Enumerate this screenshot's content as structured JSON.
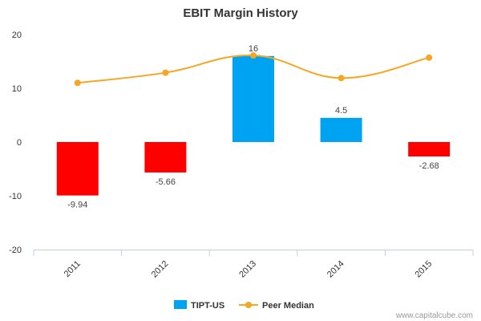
{
  "chart_data": {
    "type": "bar",
    "title": "EBIT Margin History",
    "categories": [
      "2011",
      "2012",
      "2013",
      "2014",
      "2015"
    ],
    "ylim": [
      -20,
      20
    ],
    "yticks": [
      20,
      10,
      0,
      -10,
      -20
    ],
    "tick_labels": [
      "20",
      "10",
      "0",
      "-10",
      "-20"
    ],
    "grid": false,
    "legend_position": "bottom-center",
    "series": [
      {
        "name": "TIPT-US",
        "type": "bar",
        "values": [
          -9.94,
          -5.66,
          16,
          4.5,
          -2.68
        ],
        "value_labels": [
          "-9.94",
          "-5.66",
          "16",
          "4.5",
          "-2.68"
        ],
        "positive_color": "#00a2f2",
        "negative_color": "#ff0000"
      },
      {
        "name": "Peer Median",
        "type": "line",
        "values": [
          11,
          12.9,
          16.1,
          11.9,
          15.7
        ],
        "color": "#f5a623"
      }
    ]
  },
  "credit": "www.capitalcube.com"
}
